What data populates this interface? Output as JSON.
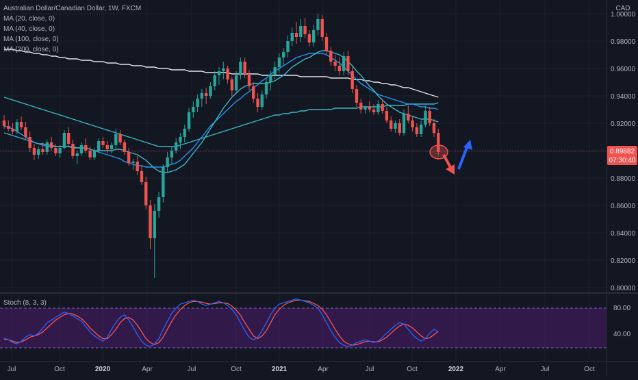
{
  "header": {
    "title": "Australian Dollar/Canadian Dollar, 1W, FXCM",
    "currency": "CAD"
  },
  "legend": {
    "ma20": "MA (20, close, 0)",
    "ma40": "MA (40, close, 0)",
    "ma100": "MA (100, close, 0)",
    "ma200": "MA (200, close, 0)"
  },
  "price_tag": {
    "value": "0.89882",
    "countdown": "07:30:40"
  },
  "stoch": {
    "label": "Stoch (8, 3, 3)",
    "levels": [
      "80.00",
      "40.00"
    ]
  },
  "colors": {
    "background": "#131722",
    "up": "#26a69a",
    "down": "#ef5350",
    "ma_cyan": "#3cb8c8",
    "ma_blue": "#2196f3",
    "ma_white": "#e0e3eb",
    "stoch_k": "#2962ff",
    "stoch_d": "#ff5252",
    "stoch_band": "#4a1e6b"
  },
  "chart_data": {
    "type": "candlestick",
    "title": "Australian Dollar/Canadian Dollar, 1W, FXCM",
    "price_axis": {
      "ticks": [
        "1.00000",
        "0.98000",
        "0.96000",
        "0.94000",
        "0.92000",
        "0.90000",
        "0.88000",
        "0.86000",
        "0.84000",
        "0.82000",
        "0.80000"
      ],
      "range": [
        0.797,
        1.005
      ]
    },
    "time_axis": {
      "ticks": [
        "Jul",
        "Oct",
        "2020",
        "Apr",
        "Jul",
        "Oct",
        "2021",
        "Apr",
        "Jul",
        "Oct",
        "2022",
        "Apr",
        "Jul",
        "Oct"
      ],
      "bold": [
        "2020",
        "2021",
        "2022"
      ]
    },
    "candles": [
      [
        0.922,
        0.926,
        0.916,
        0.918
      ],
      [
        0.918,
        0.922,
        0.914,
        0.916
      ],
      [
        0.916,
        0.92,
        0.912,
        0.914
      ],
      [
        0.914,
        0.923,
        0.912,
        0.921
      ],
      [
        0.921,
        0.925,
        0.915,
        0.917
      ],
      [
        0.917,
        0.921,
        0.908,
        0.91
      ],
      [
        0.91,
        0.914,
        0.899,
        0.902
      ],
      [
        0.902,
        0.905,
        0.893,
        0.897
      ],
      [
        0.897,
        0.903,
        0.894,
        0.901
      ],
      [
        0.901,
        0.906,
        0.897,
        0.899
      ],
      [
        0.899,
        0.908,
        0.897,
        0.906
      ],
      [
        0.906,
        0.91,
        0.9,
        0.902
      ],
      [
        0.902,
        0.905,
        0.896,
        0.898
      ],
      [
        0.898,
        0.904,
        0.895,
        0.902
      ],
      [
        0.902,
        0.915,
        0.901,
        0.913
      ],
      [
        0.913,
        0.917,
        0.903,
        0.905
      ],
      [
        0.905,
        0.908,
        0.894,
        0.896
      ],
      [
        0.896,
        0.9,
        0.89,
        0.898
      ],
      [
        0.898,
        0.906,
        0.896,
        0.904
      ],
      [
        0.904,
        0.909,
        0.898,
        0.9
      ],
      [
        0.9,
        0.903,
        0.893,
        0.895
      ],
      [
        0.895,
        0.902,
        0.893,
        0.9
      ],
      [
        0.9,
        0.909,
        0.898,
        0.907
      ],
      [
        0.907,
        0.91,
        0.902,
        0.904
      ],
      [
        0.904,
        0.907,
        0.898,
        0.901
      ],
      [
        0.901,
        0.906,
        0.898,
        0.904
      ],
      [
        0.904,
        0.916,
        0.902,
        0.912
      ],
      [
        0.912,
        0.915,
        0.904,
        0.906
      ],
      [
        0.906,
        0.908,
        0.897,
        0.899
      ],
      [
        0.899,
        0.902,
        0.889,
        0.891
      ],
      [
        0.891,
        0.894,
        0.886,
        0.892
      ],
      [
        0.892,
        0.896,
        0.882,
        0.885
      ],
      [
        0.885,
        0.889,
        0.875,
        0.877
      ],
      [
        0.877,
        0.881,
        0.857,
        0.86
      ],
      [
        0.86,
        0.864,
        0.828,
        0.836
      ],
      [
        0.836,
        0.861,
        0.807,
        0.856
      ],
      [
        0.856,
        0.87,
        0.851,
        0.866
      ],
      [
        0.866,
        0.89,
        0.862,
        0.888
      ],
      [
        0.888,
        0.899,
        0.884,
        0.895
      ],
      [
        0.895,
        0.903,
        0.89,
        0.9
      ],
      [
        0.9,
        0.909,
        0.898,
        0.906
      ],
      [
        0.906,
        0.913,
        0.901,
        0.91
      ],
      [
        0.91,
        0.919,
        0.906,
        0.916
      ],
      [
        0.916,
        0.931,
        0.914,
        0.928
      ],
      [
        0.928,
        0.936,
        0.924,
        0.932
      ],
      [
        0.932,
        0.941,
        0.928,
        0.938
      ],
      [
        0.938,
        0.945,
        0.932,
        0.942
      ],
      [
        0.942,
        0.946,
        0.934,
        0.94
      ],
      [
        0.94,
        0.95,
        0.938,
        0.947
      ],
      [
        0.947,
        0.958,
        0.944,
        0.955
      ],
      [
        0.955,
        0.961,
        0.948,
        0.958
      ],
      [
        0.958,
        0.965,
        0.952,
        0.96
      ],
      [
        0.96,
        0.962,
        0.949,
        0.952
      ],
      [
        0.952,
        0.954,
        0.94,
        0.944
      ],
      [
        0.944,
        0.958,
        0.942,
        0.955
      ],
      [
        0.955,
        0.968,
        0.952,
        0.965
      ],
      [
        0.965,
        0.968,
        0.953,
        0.956
      ],
      [
        0.956,
        0.959,
        0.944,
        0.947
      ],
      [
        0.947,
        0.95,
        0.935,
        0.938
      ],
      [
        0.938,
        0.942,
        0.928,
        0.932
      ],
      [
        0.932,
        0.944,
        0.93,
        0.941
      ],
      [
        0.941,
        0.953,
        0.938,
        0.95
      ],
      [
        0.95,
        0.958,
        0.944,
        0.955
      ],
      [
        0.955,
        0.965,
        0.952,
        0.961
      ],
      [
        0.961,
        0.971,
        0.957,
        0.968
      ],
      [
        0.968,
        0.975,
        0.962,
        0.972
      ],
      [
        0.972,
        0.984,
        0.968,
        0.98
      ],
      [
        0.98,
        0.99,
        0.976,
        0.986
      ],
      [
        0.986,
        0.994,
        0.978,
        0.983
      ],
      [
        0.983,
        0.996,
        0.979,
        0.991
      ],
      [
        0.991,
        0.997,
        0.982,
        0.985
      ],
      [
        0.985,
        0.988,
        0.976,
        0.979
      ],
      [
        0.979,
        0.992,
        0.976,
        0.988
      ],
      [
        0.988,
        1.0,
        0.984,
        0.996
      ],
      [
        0.996,
        0.999,
        0.98,
        0.983
      ],
      [
        0.983,
        0.986,
        0.97,
        0.973
      ],
      [
        0.973,
        0.976,
        0.962,
        0.965
      ],
      [
        0.965,
        0.97,
        0.958,
        0.962
      ],
      [
        0.962,
        0.968,
        0.955,
        0.958
      ],
      [
        0.958,
        0.972,
        0.955,
        0.969
      ],
      [
        0.969,
        0.973,
        0.955,
        0.958
      ],
      [
        0.958,
        0.961,
        0.942,
        0.945
      ],
      [
        0.945,
        0.948,
        0.932,
        0.935
      ],
      [
        0.935,
        0.938,
        0.927,
        0.93
      ],
      [
        0.93,
        0.933,
        0.927,
        0.932
      ],
      [
        0.932,
        0.936,
        0.928,
        0.93
      ],
      [
        0.93,
        0.934,
        0.926,
        0.928
      ],
      [
        0.928,
        0.937,
        0.926,
        0.934
      ],
      [
        0.934,
        0.937,
        0.927,
        0.929
      ],
      [
        0.929,
        0.932,
        0.92,
        0.922
      ],
      [
        0.922,
        0.925,
        0.914,
        0.916
      ],
      [
        0.916,
        0.922,
        0.913,
        0.92
      ],
      [
        0.92,
        0.923,
        0.911,
        0.913
      ],
      [
        0.913,
        0.93,
        0.911,
        0.927
      ],
      [
        0.927,
        0.933,
        0.92,
        0.922
      ],
      [
        0.922,
        0.925,
        0.914,
        0.917
      ],
      [
        0.917,
        0.92,
        0.91,
        0.912
      ],
      [
        0.912,
        0.922,
        0.91,
        0.919
      ],
      [
        0.919,
        0.933,
        0.917,
        0.929
      ],
      [
        0.929,
        0.932,
        0.918,
        0.92
      ],
      [
        0.92,
        0.923,
        0.91,
        0.913
      ],
      [
        0.913,
        0.916,
        0.897,
        0.899
      ]
    ],
    "ma20": [
      0.913,
      0.912,
      0.911,
      0.91,
      0.909,
      0.908,
      0.907,
      0.906,
      0.905,
      0.905,
      0.904,
      0.904,
      0.903,
      0.903,
      0.903,
      0.903,
      0.902,
      0.902,
      0.902,
      0.902,
      0.901,
      0.9,
      0.9,
      0.9,
      0.9,
      0.9,
      0.901,
      0.901,
      0.9,
      0.899,
      0.898,
      0.897,
      0.895,
      0.893,
      0.89,
      0.887,
      0.885,
      0.884,
      0.884,
      0.885,
      0.886,
      0.888,
      0.89,
      0.894,
      0.898,
      0.902,
      0.906,
      0.911,
      0.916,
      0.921,
      0.926,
      0.931,
      0.935,
      0.939,
      0.942,
      0.945,
      0.947,
      0.948,
      0.949,
      0.949,
      0.949,
      0.949,
      0.95,
      0.951,
      0.953,
      0.955,
      0.958,
      0.961,
      0.963,
      0.965,
      0.967,
      0.968,
      0.97,
      0.972,
      0.973,
      0.973,
      0.972,
      0.971,
      0.97,
      0.968,
      0.965,
      0.962,
      0.958,
      0.955,
      0.951,
      0.947,
      0.944,
      0.94,
      0.937,
      0.934,
      0.932,
      0.93,
      0.928,
      0.927,
      0.926,
      0.925,
      0.924,
      0.923,
      0.923,
      0.923,
      0.922,
      0.921
    ],
    "ma40": [
      0.918,
      0.917,
      0.916,
      0.914,
      0.912,
      0.91,
      0.908,
      0.906,
      0.905,
      0.904,
      0.903,
      0.903,
      0.903,
      0.903,
      0.903,
      0.903,
      0.903,
      0.902,
      0.902,
      0.902,
      0.901,
      0.9,
      0.899,
      0.898,
      0.897,
      0.896,
      0.895,
      0.894,
      0.892,
      0.891,
      0.89,
      0.889,
      0.889,
      0.888,
      0.888,
      0.888,
      0.888,
      0.888,
      0.889,
      0.89,
      0.891,
      0.893,
      0.896,
      0.899,
      0.902,
      0.906,
      0.91,
      0.914,
      0.918,
      0.921,
      0.924,
      0.927,
      0.93,
      0.933,
      0.936,
      0.938,
      0.941,
      0.943,
      0.946,
      0.948,
      0.951,
      0.953,
      0.956,
      0.958,
      0.96,
      0.962,
      0.964,
      0.966,
      0.968,
      0.969,
      0.97,
      0.971,
      0.971,
      0.971,
      0.971,
      0.97,
      0.968,
      0.966,
      0.964,
      0.961,
      0.958,
      0.955,
      0.952,
      0.949,
      0.947,
      0.945,
      0.943,
      0.941,
      0.94,
      0.939,
      0.938,
      0.937,
      0.936,
      0.935,
      0.934,
      0.934,
      0.933,
      0.932,
      0.932,
      0.931,
      0.931,
      0.93
    ],
    "ma100": [
      0.939,
      0.938,
      0.937,
      0.936,
      0.935,
      0.934,
      0.933,
      0.932,
      0.931,
      0.93,
      0.929,
      0.928,
      0.927,
      0.926,
      0.925,
      0.924,
      0.923,
      0.922,
      0.921,
      0.92,
      0.919,
      0.918,
      0.917,
      0.916,
      0.915,
      0.914,
      0.913,
      0.912,
      0.911,
      0.91,
      0.909,
      0.908,
      0.907,
      0.906,
      0.905,
      0.904,
      0.903,
      0.903,
      0.903,
      0.903,
      0.903,
      0.904,
      0.905,
      0.906,
      0.907,
      0.908,
      0.909,
      0.91,
      0.911,
      0.912,
      0.913,
      0.914,
      0.915,
      0.916,
      0.917,
      0.918,
      0.919,
      0.92,
      0.921,
      0.922,
      0.923,
      0.924,
      0.925,
      0.926,
      0.926,
      0.927,
      0.927,
      0.928,
      0.928,
      0.929,
      0.929,
      0.93,
      0.93,
      0.93,
      0.93,
      0.93,
      0.93,
      0.931,
      0.931,
      0.931,
      0.931,
      0.931,
      0.931,
      0.932,
      0.932,
      0.932,
      0.932,
      0.932,
      0.932,
      0.933,
      0.933,
      0.933,
      0.933,
      0.933,
      0.934,
      0.934,
      0.934,
      0.934,
      0.934,
      0.934,
      0.934,
      0.935
    ],
    "ma200": [
      0.974,
      0.974,
      0.974,
      0.973,
      0.973,
      0.972,
      0.972,
      0.971,
      0.971,
      0.97,
      0.97,
      0.969,
      0.969,
      0.968,
      0.968,
      0.967,
      0.967,
      0.967,
      0.966,
      0.966,
      0.966,
      0.965,
      0.965,
      0.965,
      0.964,
      0.964,
      0.964,
      0.963,
      0.963,
      0.963,
      0.962,
      0.962,
      0.962,
      0.961,
      0.961,
      0.961,
      0.96,
      0.96,
      0.96,
      0.959,
      0.959,
      0.959,
      0.959,
      0.958,
      0.958,
      0.958,
      0.958,
      0.957,
      0.957,
      0.957,
      0.957,
      0.957,
      0.957,
      0.956,
      0.956,
      0.956,
      0.956,
      0.956,
      0.956,
      0.956,
      0.955,
      0.955,
      0.955,
      0.955,
      0.955,
      0.955,
      0.955,
      0.955,
      0.955,
      0.954,
      0.954,
      0.954,
      0.954,
      0.954,
      0.954,
      0.954,
      0.953,
      0.953,
      0.953,
      0.953,
      0.953,
      0.952,
      0.952,
      0.952,
      0.951,
      0.951,
      0.95,
      0.95,
      0.949,
      0.949,
      0.948,
      0.948,
      0.947,
      0.946,
      0.946,
      0.945,
      0.944,
      0.943,
      0.942,
      0.941,
      0.94,
      0.939
    ],
    "stoch_k": [
      35,
      32,
      28,
      26,
      30,
      36,
      40,
      38,
      42,
      50,
      58,
      62,
      66,
      70,
      74,
      72,
      68,
      64,
      60,
      52,
      44,
      38,
      34,
      30,
      36,
      48,
      58,
      66,
      70,
      62,
      52,
      40,
      30,
      24,
      22,
      26,
      34,
      48,
      60,
      72,
      80,
      86,
      88,
      90,
      92,
      90,
      86,
      84,
      86,
      88,
      90,
      88,
      84,
      78,
      70,
      58,
      46,
      36,
      32,
      36,
      46,
      58,
      70,
      80,
      86,
      88,
      90,
      92,
      94,
      92,
      90,
      88,
      84,
      80,
      70,
      58,
      46,
      36,
      28,
      24,
      22,
      24,
      28,
      30,
      32,
      30,
      28,
      30,
      36,
      42,
      48,
      54,
      58,
      56,
      48,
      40,
      34,
      30,
      34,
      42,
      48,
      44
    ],
    "stoch_d": [
      33,
      32,
      30,
      28,
      29,
      32,
      36,
      38,
      40,
      44,
      50,
      56,
      62,
      66,
      70,
      72,
      71,
      68,
      64,
      58,
      50,
      44,
      38,
      34,
      34,
      40,
      48,
      58,
      64,
      66,
      62,
      54,
      44,
      34,
      28,
      25,
      28,
      36,
      48,
      60,
      70,
      78,
      84,
      88,
      90,
      90,
      89,
      87,
      86,
      87,
      88,
      88,
      87,
      83,
      77,
      69,
      58,
      48,
      38,
      34,
      38,
      46,
      58,
      70,
      78,
      84,
      88,
      90,
      92,
      92,
      91,
      90,
      87,
      84,
      78,
      70,
      59,
      48,
      38,
      30,
      26,
      24,
      25,
      27,
      29,
      30,
      29,
      29,
      32,
      36,
      42,
      48,
      53,
      56,
      54,
      50,
      44,
      38,
      34,
      35,
      40,
      45
    ]
  }
}
